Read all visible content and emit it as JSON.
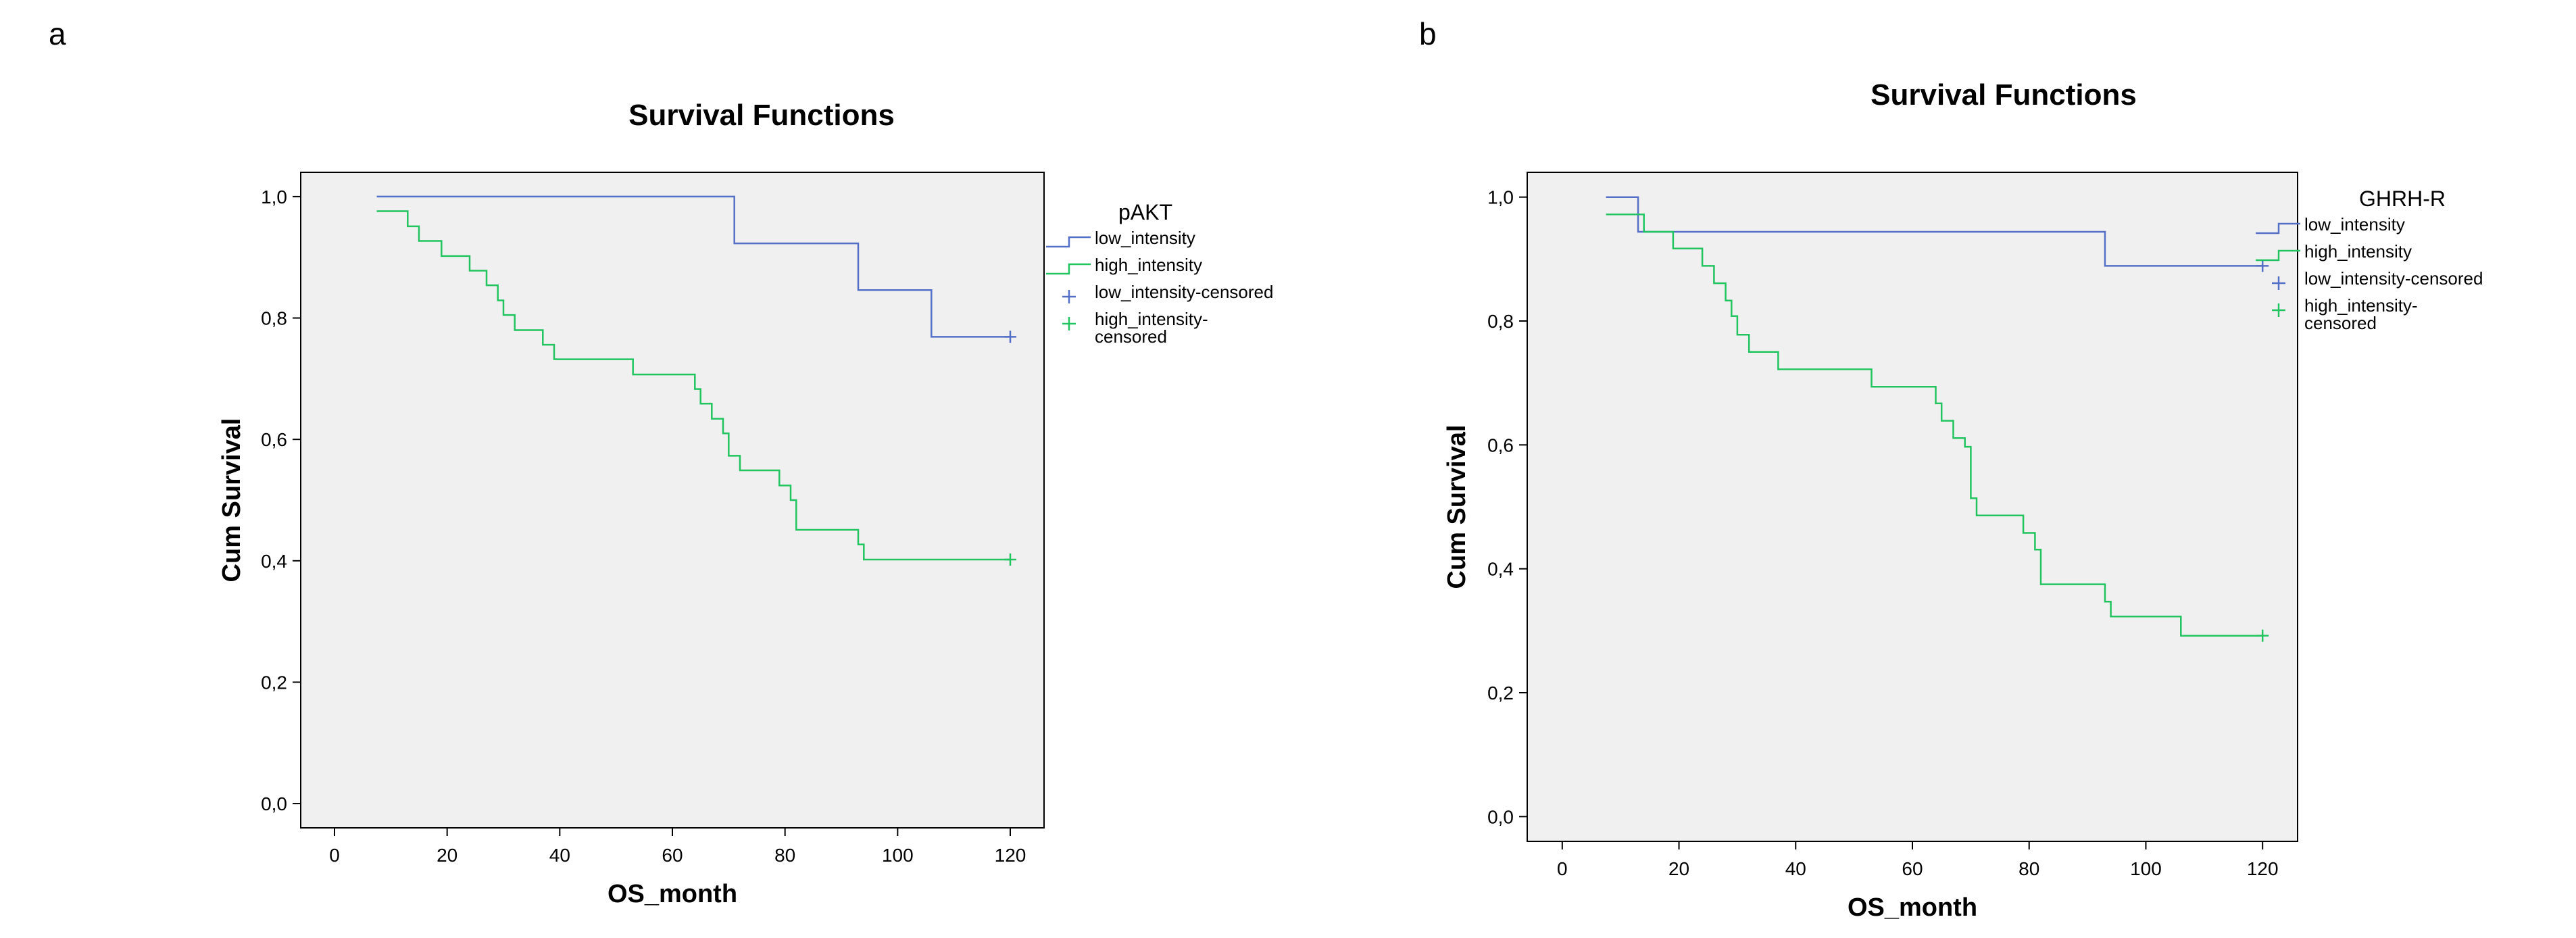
{
  "colors": {
    "low": "#5470c6",
    "high": "#21c45e",
    "plot_bg": "#f0f0f0",
    "frame": "#000000"
  },
  "chart_data": [
    {
      "panel_label": "a",
      "type": "line",
      "title": "Survival Functions",
      "xlabel": "OS_month",
      "ylabel": "Cum Survival",
      "xlim": [
        -6,
        126
      ],
      "ylim": [
        -0.04,
        1.04
      ],
      "xticks": [
        0,
        20,
        40,
        60,
        80,
        100,
        120
      ],
      "yticks": [
        0.0,
        0.2,
        0.4,
        0.6,
        0.8,
        1.0
      ],
      "ytick_labels": [
        "0,0",
        "0,2",
        "0,4",
        "0,6",
        "0,8",
        "1,0"
      ],
      "legend": {
        "title": "pAKT",
        "entries": [
          "low_intensity",
          "high_intensity",
          "low_intensity-censored",
          "high_intensity-censored"
        ]
      },
      "series": [
        {
          "name": "low_intensity",
          "color_key": "low",
          "x": [
            7.5,
            71,
            71,
            93,
            93,
            106,
            106,
            120
          ],
          "y": [
            1.0,
            1.0,
            0.923,
            0.923,
            0.846,
            0.846,
            0.769,
            0.769
          ],
          "censored": [
            [
              120,
              0.769
            ]
          ]
        },
        {
          "name": "high_intensity",
          "color_key": "high",
          "x": [
            7.5,
            13,
            13,
            15,
            15,
            19,
            19,
            24,
            24,
            27,
            27,
            29,
            29,
            30,
            30,
            32,
            32,
            37,
            37,
            39,
            39,
            53,
            53,
            64,
            64,
            65,
            65,
            67,
            67,
            69,
            69,
            70,
            70,
            72,
            72,
            79,
            79,
            81,
            81,
            82,
            82,
            93,
            93,
            94,
            94,
            120
          ],
          "y": [
            0.976,
            0.976,
            0.951,
            0.951,
            0.927,
            0.927,
            0.902,
            0.902,
            0.878,
            0.878,
            0.854,
            0.854,
            0.829,
            0.829,
            0.805,
            0.805,
            0.78,
            0.78,
            0.756,
            0.756,
            0.732,
            0.732,
            0.707,
            0.707,
            0.683,
            0.683,
            0.659,
            0.659,
            0.634,
            0.634,
            0.61,
            0.61,
            0.573,
            0.573,
            0.549,
            0.549,
            0.524,
            0.524,
            0.5,
            0.5,
            0.451,
            0.451,
            0.427,
            0.427,
            0.402,
            0.402
          ],
          "censored": [
            [
              120,
              0.402
            ]
          ]
        }
      ]
    },
    {
      "panel_label": "b",
      "type": "line",
      "title": "Survival Functions",
      "xlabel": "OS_month",
      "ylabel": "Cum Survival",
      "xlim": [
        -6,
        126
      ],
      "ylim": [
        -0.04,
        1.04
      ],
      "xticks": [
        0,
        20,
        40,
        60,
        80,
        100,
        120
      ],
      "yticks": [
        0.0,
        0.2,
        0.4,
        0.6,
        0.8,
        1.0
      ],
      "ytick_labels": [
        "0,0",
        "0,2",
        "0,4",
        "0,6",
        "0,8",
        "1,0"
      ],
      "legend": {
        "title": "GHRH-R",
        "entries": [
          "low_intensity",
          "high_intensity",
          "low_intensity-censored",
          "high_intensity-censored"
        ]
      },
      "series": [
        {
          "name": "low_intensity",
          "color_key": "low",
          "x": [
            7.5,
            13,
            13,
            93,
            93,
            120
          ],
          "y": [
            1.0,
            1.0,
            0.944,
            0.944,
            0.889,
            0.889
          ],
          "censored": [
            [
              120,
              0.889
            ]
          ]
        },
        {
          "name": "high_intensity",
          "color_key": "high",
          "x": [
            7.5,
            14,
            14,
            19,
            19,
            24,
            24,
            26,
            26,
            28,
            28,
            29,
            29,
            30,
            30,
            32,
            32,
            37,
            37,
            39,
            39,
            53,
            53,
            64,
            64,
            65,
            65,
            67,
            67,
            69,
            69,
            70,
            70,
            71,
            71,
            72,
            72,
            79,
            79,
            81,
            81,
            82,
            82,
            93,
            93,
            94,
            94,
            106,
            106,
            120
          ],
          "y": [
            0.972,
            0.972,
            0.944,
            0.944,
            0.917,
            0.917,
            0.889,
            0.889,
            0.861,
            0.861,
            0.833,
            0.833,
            0.808,
            0.808,
            0.778,
            0.778,
            0.75,
            0.75,
            0.722,
            0.722,
            0.722,
            0.722,
            0.694,
            0.694,
            0.667,
            0.667,
            0.639,
            0.639,
            0.611,
            0.611,
            0.597,
            0.597,
            0.514,
            0.514,
            0.486,
            0.486,
            0.486,
            0.486,
            0.458,
            0.458,
            0.431,
            0.431,
            0.375,
            0.375,
            0.347,
            0.347,
            0.323,
            0.323,
            0.292,
            0.292
          ],
          "censored": [
            [
              120,
              0.292
            ]
          ]
        }
      ]
    }
  ]
}
